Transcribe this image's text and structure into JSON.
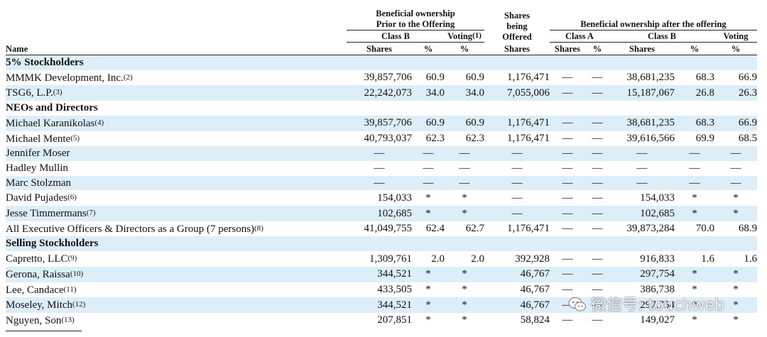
{
  "header": {
    "name": "Name",
    "prior_group": "Beneficial ownership Prior to the Offering",
    "class_b": "Class B",
    "voting_1": "Voting",
    "voting_1_note": "(1)",
    "shares_being_offered": "Shares being Offered",
    "after_group": "Beneficial ownership after the offering",
    "class_a": "Class A",
    "class_b_after": "Class B",
    "voting_after": "Voting",
    "shares": "Shares",
    "pct": "%"
  },
  "rows": [
    {
      "type": "section",
      "name": "5% Stockholders"
    },
    {
      "type": "data",
      "name": "MMMK Development, Inc.",
      "note": "(2)",
      "b_shares": "39,857,706",
      "b_pct": "60.9",
      "voting": "60.9",
      "offered": "1,176,471",
      "a_shares": "—",
      "a_pct": "—",
      "b_after": "38,681,235",
      "b_after_pct": "68.3",
      "voting_after": "66.9"
    },
    {
      "type": "data",
      "name": "TSG6, L.P.",
      "note": "(3)",
      "b_shares": "22,242,073",
      "b_pct": "34.0",
      "voting": "34.0",
      "offered": "7,055,006",
      "a_shares": "—",
      "a_pct": "—",
      "b_after": "15,187,067",
      "b_after_pct": "26.8",
      "voting_after": "26.3"
    },
    {
      "type": "section",
      "name": "NEOs and Directors"
    },
    {
      "type": "data",
      "name": "Michael Karanikolas",
      "note": "(4)",
      "b_shares": "39,857,706",
      "b_pct": "60.9",
      "voting": "60.9",
      "offered": "1,176,471",
      "a_shares": "—",
      "a_pct": "—",
      "b_after": "38,681,235",
      "b_after_pct": "68.3",
      "voting_after": "66.9"
    },
    {
      "type": "data",
      "name": "Michael Mente",
      "note": "(5)",
      "b_shares": "40,793,037",
      "b_pct": "62.3",
      "voting": "62.3",
      "offered": "1,176,471",
      "a_shares": "—",
      "a_pct": "—",
      "b_after": "39,616,566",
      "b_after_pct": "69.9",
      "voting_after": "68.5"
    },
    {
      "type": "data",
      "name": "Jennifer Moser",
      "note": "",
      "b_shares": "—",
      "b_pct": "—",
      "voting": "—",
      "offered": "—",
      "a_shares": "—",
      "a_pct": "—",
      "b_after": "—",
      "b_after_pct": "—",
      "voting_after": "—"
    },
    {
      "type": "data",
      "name": "Hadley Mullin",
      "note": "",
      "b_shares": "—",
      "b_pct": "—",
      "voting": "—",
      "offered": "—",
      "a_shares": "—",
      "a_pct": "—",
      "b_after": "—",
      "b_after_pct": "—",
      "voting_after": "—"
    },
    {
      "type": "data",
      "name": "Marc Stolzman",
      "note": "",
      "b_shares": "—",
      "b_pct": "—",
      "voting": "—",
      "offered": "—",
      "a_shares": "—",
      "a_pct": "—",
      "b_after": "—",
      "b_after_pct": "—",
      "voting_after": "—"
    },
    {
      "type": "data",
      "name": "David Pujades",
      "note": "(6)",
      "b_shares": "154,033",
      "b_pct": "*",
      "voting": "*",
      "offered": "—",
      "a_shares": "—",
      "a_pct": "—",
      "b_after": "154,033",
      "b_after_pct": "*",
      "voting_after": "*"
    },
    {
      "type": "data",
      "name": "Jesse Timmermans",
      "note": "(7)",
      "b_shares": "102,685",
      "b_pct": "*",
      "voting": "*",
      "offered": "—",
      "a_shares": "—",
      "a_pct": "—",
      "b_after": "102,685",
      "b_after_pct": "*",
      "voting_after": "*"
    },
    {
      "type": "data",
      "name": "All Executive Officers & Directors as a Group (7 persons)",
      "note": "(8)",
      "b_shares": "41,049,755",
      "b_pct": "62.4",
      "voting": "62.7",
      "offered": "1,176,471",
      "a_shares": "—",
      "a_pct": "—",
      "b_after": "39,873,284",
      "b_after_pct": "70.0",
      "voting_after": "68.9"
    },
    {
      "type": "section",
      "name": "Selling Stockholders"
    },
    {
      "type": "data",
      "name": "Capretto, LLC",
      "note": "(9)",
      "b_shares": "1,309,761",
      "b_pct": "2.0",
      "voting": "2.0",
      "offered": "392,928",
      "a_shares": "—",
      "a_pct": "—",
      "b_after": "916,833",
      "b_after_pct": "1.6",
      "voting_after": "1.6"
    },
    {
      "type": "data",
      "name": "Gerona, Raissa",
      "note": "(10)",
      "b_shares": "344,521",
      "b_pct": "*",
      "voting": "*",
      "offered": "46,767",
      "a_shares": "—",
      "a_pct": "—",
      "b_after": "297,754",
      "b_after_pct": "*",
      "voting_after": "*"
    },
    {
      "type": "data",
      "name": "Lee, Candace",
      "note": "(11)",
      "b_shares": "433,505",
      "b_pct": "*",
      "voting": "*",
      "offered": "46,767",
      "a_shares": "—",
      "a_pct": "—",
      "b_after": "386,738",
      "b_after_pct": "*",
      "voting_after": "*"
    },
    {
      "type": "data",
      "name": "Moseley, Mitch",
      "note": "(12)",
      "b_shares": "344,521",
      "b_pct": "*",
      "voting": "*",
      "offered": "46,767",
      "a_shares": "—",
      "a_pct": "—",
      "b_after": "297,754",
      "b_after_pct": "*",
      "voting_after": "*"
    },
    {
      "type": "data",
      "name": "Nguyen, Son",
      "note": "(13)",
      "b_shares": "207,851",
      "b_pct": "*",
      "voting": "*",
      "offered": "58,824",
      "a_shares": "—",
      "a_pct": "—",
      "b_after": "149,027",
      "b_after_pct": "*",
      "voting_after": "*"
    }
  ],
  "watermark": {
    "text": "微信号: touchweb",
    "icon": "wechat-icon"
  }
}
